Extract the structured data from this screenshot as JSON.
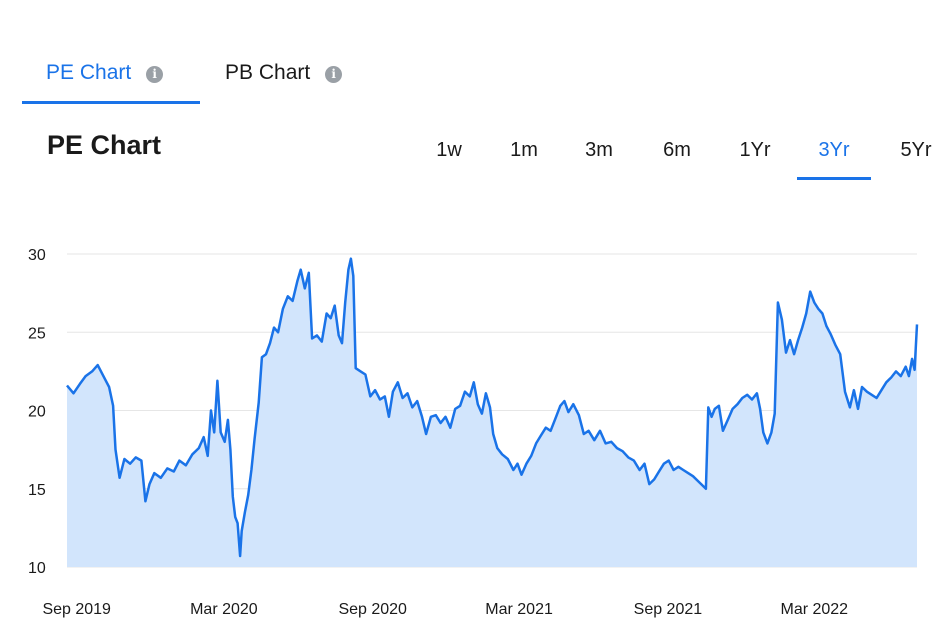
{
  "tabs": [
    {
      "label": "PE Chart",
      "active": true
    },
    {
      "label": "PB Chart",
      "active": false
    }
  ],
  "info_icon": "info-icon",
  "title": "PE Chart",
  "ranges": [
    "1w",
    "1m",
    "3m",
    "6m",
    "1Yr",
    "3Yr",
    "5Yr"
  ],
  "active_range": "3Yr",
  "colors": {
    "accent": "#1a73e8",
    "line": "#1a73e8",
    "fill": "#d2e5fc"
  },
  "chart_data": {
    "type": "area",
    "title": "",
    "xlabel": "",
    "ylabel": "",
    "ylim": [
      10,
      30
    ],
    "yticks": [
      10,
      15,
      20,
      25,
      30
    ],
    "grid": true,
    "xticks": [
      {
        "label": "Sep 2019",
        "x": "2019-09-01"
      },
      {
        "label": "Mar 2020",
        "x": "2020-03-01"
      },
      {
        "label": "Sep 2020",
        "x": "2020-09-01"
      },
      {
        "label": "Mar 2021",
        "x": "2021-03-01"
      },
      {
        "label": "Sep 2021",
        "x": "2021-09-01"
      },
      {
        "label": "Mar 2022",
        "x": "2022-03-01"
      }
    ],
    "series": [
      {
        "points": [
          [
            "2019-08-20",
            21.6
          ],
          [
            "2019-08-28",
            21.1
          ],
          [
            "2019-09-05",
            21.7
          ],
          [
            "2019-09-12",
            22.2
          ],
          [
            "2019-09-20",
            22.5
          ],
          [
            "2019-09-27",
            22.9
          ],
          [
            "2019-10-04",
            22.2
          ],
          [
            "2019-10-11",
            21.5
          ],
          [
            "2019-10-16",
            20.3
          ],
          [
            "2019-10-19",
            17.5
          ],
          [
            "2019-10-24",
            15.7
          ],
          [
            "2019-10-30",
            16.9
          ],
          [
            "2019-11-06",
            16.6
          ],
          [
            "2019-11-13",
            17.0
          ],
          [
            "2019-11-20",
            16.8
          ],
          [
            "2019-11-25",
            14.2
          ],
          [
            "2019-11-30",
            15.3
          ],
          [
            "2019-12-06",
            16.0
          ],
          [
            "2019-12-14",
            15.7
          ],
          [
            "2019-12-22",
            16.3
          ],
          [
            "2019-12-30",
            16.1
          ],
          [
            "2020-01-06",
            16.8
          ],
          [
            "2020-01-14",
            16.5
          ],
          [
            "2020-01-22",
            17.2
          ],
          [
            "2020-01-30",
            17.6
          ],
          [
            "2020-02-05",
            18.3
          ],
          [
            "2020-02-10",
            17.1
          ],
          [
            "2020-02-14",
            20.0
          ],
          [
            "2020-02-18",
            18.6
          ],
          [
            "2020-02-22",
            21.9
          ],
          [
            "2020-02-26",
            18.6
          ],
          [
            "2020-03-02",
            18.0
          ],
          [
            "2020-03-06",
            19.4
          ],
          [
            "2020-03-09",
            17.5
          ],
          [
            "2020-03-12",
            14.5
          ],
          [
            "2020-03-15",
            13.2
          ],
          [
            "2020-03-18",
            12.8
          ],
          [
            "2020-03-21",
            10.7
          ],
          [
            "2020-03-23",
            12.3
          ],
          [
            "2020-03-27",
            13.5
          ],
          [
            "2020-03-31",
            14.6
          ],
          [
            "2020-04-04",
            16.2
          ],
          [
            "2020-04-08",
            18.2
          ],
          [
            "2020-04-13",
            20.5
          ],
          [
            "2020-04-17",
            23.4
          ],
          [
            "2020-04-22",
            23.6
          ],
          [
            "2020-04-27",
            24.3
          ],
          [
            "2020-05-02",
            25.3
          ],
          [
            "2020-05-07",
            25.0
          ],
          [
            "2020-05-13",
            26.5
          ],
          [
            "2020-05-19",
            27.3
          ],
          [
            "2020-05-25",
            27.0
          ],
          [
            "2020-05-31",
            28.3
          ],
          [
            "2020-06-04",
            29.0
          ],
          [
            "2020-06-09",
            27.8
          ],
          [
            "2020-06-14",
            28.8
          ],
          [
            "2020-06-18",
            24.6
          ],
          [
            "2020-06-24",
            24.8
          ],
          [
            "2020-06-30",
            24.4
          ],
          [
            "2020-07-06",
            26.2
          ],
          [
            "2020-07-11",
            25.9
          ],
          [
            "2020-07-16",
            26.7
          ],
          [
            "2020-07-21",
            24.8
          ],
          [
            "2020-07-25",
            24.3
          ],
          [
            "2020-07-29",
            26.9
          ],
          [
            "2020-08-02",
            29.0
          ],
          [
            "2020-08-05",
            29.7
          ],
          [
            "2020-08-08",
            28.6
          ],
          [
            "2020-08-11",
            22.7
          ],
          [
            "2020-08-17",
            22.5
          ],
          [
            "2020-08-23",
            22.3
          ],
          [
            "2020-08-29",
            20.9
          ],
          [
            "2020-09-04",
            21.3
          ],
          [
            "2020-09-10",
            20.7
          ],
          [
            "2020-09-16",
            20.9
          ],
          [
            "2020-09-21",
            19.6
          ],
          [
            "2020-09-26",
            21.2
          ],
          [
            "2020-10-02",
            21.8
          ],
          [
            "2020-10-08",
            20.8
          ],
          [
            "2020-10-14",
            21.1
          ],
          [
            "2020-10-20",
            20.2
          ],
          [
            "2020-10-26",
            20.6
          ],
          [
            "2020-11-01",
            19.6
          ],
          [
            "2020-11-06",
            18.5
          ],
          [
            "2020-11-12",
            19.6
          ],
          [
            "2020-11-18",
            19.7
          ],
          [
            "2020-11-24",
            19.2
          ],
          [
            "2020-11-30",
            19.6
          ],
          [
            "2020-12-06",
            18.9
          ],
          [
            "2020-12-12",
            20.1
          ],
          [
            "2020-12-18",
            20.3
          ],
          [
            "2020-12-24",
            21.2
          ],
          [
            "2020-12-30",
            20.9
          ],
          [
            "2021-01-04",
            21.8
          ],
          [
            "2021-01-09",
            20.4
          ],
          [
            "2021-01-14",
            19.8
          ],
          [
            "2021-01-19",
            21.1
          ],
          [
            "2021-01-24",
            20.2
          ],
          [
            "2021-01-28",
            18.5
          ],
          [
            "2021-02-02",
            17.6
          ],
          [
            "2021-02-08",
            17.2
          ],
          [
            "2021-02-15",
            16.9
          ],
          [
            "2021-02-22",
            16.2
          ],
          [
            "2021-02-27",
            16.6
          ],
          [
            "2021-03-04",
            15.9
          ],
          [
            "2021-03-10",
            16.6
          ],
          [
            "2021-03-16",
            17.1
          ],
          [
            "2021-03-22",
            17.9
          ],
          [
            "2021-03-28",
            18.4
          ],
          [
            "2021-04-03",
            18.9
          ],
          [
            "2021-04-09",
            18.7
          ],
          [
            "2021-04-15",
            19.5
          ],
          [
            "2021-04-21",
            20.3
          ],
          [
            "2021-04-26",
            20.6
          ],
          [
            "2021-05-01",
            19.9
          ],
          [
            "2021-05-07",
            20.4
          ],
          [
            "2021-05-14",
            19.7
          ],
          [
            "2021-05-20",
            18.5
          ],
          [
            "2021-05-26",
            18.7
          ],
          [
            "2021-06-02",
            18.1
          ],
          [
            "2021-06-09",
            18.7
          ],
          [
            "2021-06-16",
            17.9
          ],
          [
            "2021-06-23",
            18.0
          ],
          [
            "2021-06-30",
            17.6
          ],
          [
            "2021-07-07",
            17.4
          ],
          [
            "2021-07-14",
            17.0
          ],
          [
            "2021-07-21",
            16.8
          ],
          [
            "2021-07-28",
            16.2
          ],
          [
            "2021-08-03",
            16.6
          ],
          [
            "2021-08-09",
            15.3
          ],
          [
            "2021-08-15",
            15.6
          ],
          [
            "2021-08-21",
            16.1
          ],
          [
            "2021-08-27",
            16.6
          ],
          [
            "2021-09-02",
            16.8
          ],
          [
            "2021-09-08",
            16.2
          ],
          [
            "2021-09-14",
            16.4
          ],
          [
            "2021-09-20",
            16.2
          ],
          [
            "2021-09-26",
            16.0
          ],
          [
            "2021-10-02",
            15.8
          ],
          [
            "2021-10-08",
            15.5
          ],
          [
            "2021-10-14",
            15.2
          ],
          [
            "2021-10-18",
            15.0
          ],
          [
            "2021-10-21",
            20.2
          ],
          [
            "2021-10-25",
            19.6
          ],
          [
            "2021-10-29",
            20.1
          ],
          [
            "2021-11-03",
            20.3
          ],
          [
            "2021-11-08",
            18.7
          ],
          [
            "2021-11-14",
            19.4
          ],
          [
            "2021-11-20",
            20.1
          ],
          [
            "2021-11-26",
            20.4
          ],
          [
            "2021-12-02",
            20.8
          ],
          [
            "2021-12-08",
            21.0
          ],
          [
            "2021-12-14",
            20.7
          ],
          [
            "2021-12-20",
            21.1
          ],
          [
            "2021-12-24",
            20.1
          ],
          [
            "2021-12-28",
            18.6
          ],
          [
            "2022-01-02",
            17.9
          ],
          [
            "2022-01-07",
            18.6
          ],
          [
            "2022-01-11",
            19.8
          ],
          [
            "2022-01-15",
            26.9
          ],
          [
            "2022-01-20",
            25.8
          ],
          [
            "2022-01-25",
            23.7
          ],
          [
            "2022-01-30",
            24.5
          ],
          [
            "2022-02-04",
            23.6
          ],
          [
            "2022-02-09",
            24.5
          ],
          [
            "2022-02-14",
            25.3
          ],
          [
            "2022-02-19",
            26.2
          ],
          [
            "2022-02-24",
            27.6
          ],
          [
            "2022-03-01",
            26.9
          ],
          [
            "2022-03-06",
            26.5
          ],
          [
            "2022-03-11",
            26.2
          ],
          [
            "2022-03-16",
            25.4
          ],
          [
            "2022-03-21",
            24.9
          ],
          [
            "2022-03-27",
            24.2
          ],
          [
            "2022-04-02",
            23.6
          ],
          [
            "2022-04-08",
            21.2
          ],
          [
            "2022-04-14",
            20.2
          ],
          [
            "2022-04-19",
            21.3
          ],
          [
            "2022-04-24",
            20.1
          ],
          [
            "2022-04-29",
            21.5
          ],
          [
            "2022-05-05",
            21.2
          ],
          [
            "2022-05-11",
            21.0
          ],
          [
            "2022-05-17",
            20.8
          ],
          [
            "2022-05-23",
            21.3
          ],
          [
            "2022-05-29",
            21.8
          ],
          [
            "2022-06-04",
            22.1
          ],
          [
            "2022-06-10",
            22.5
          ],
          [
            "2022-06-16",
            22.2
          ],
          [
            "2022-06-22",
            22.8
          ],
          [
            "2022-06-26",
            22.2
          ],
          [
            "2022-06-30",
            23.3
          ],
          [
            "2022-07-03",
            22.6
          ],
          [
            "2022-07-06",
            25.5
          ]
        ]
      }
    ]
  }
}
